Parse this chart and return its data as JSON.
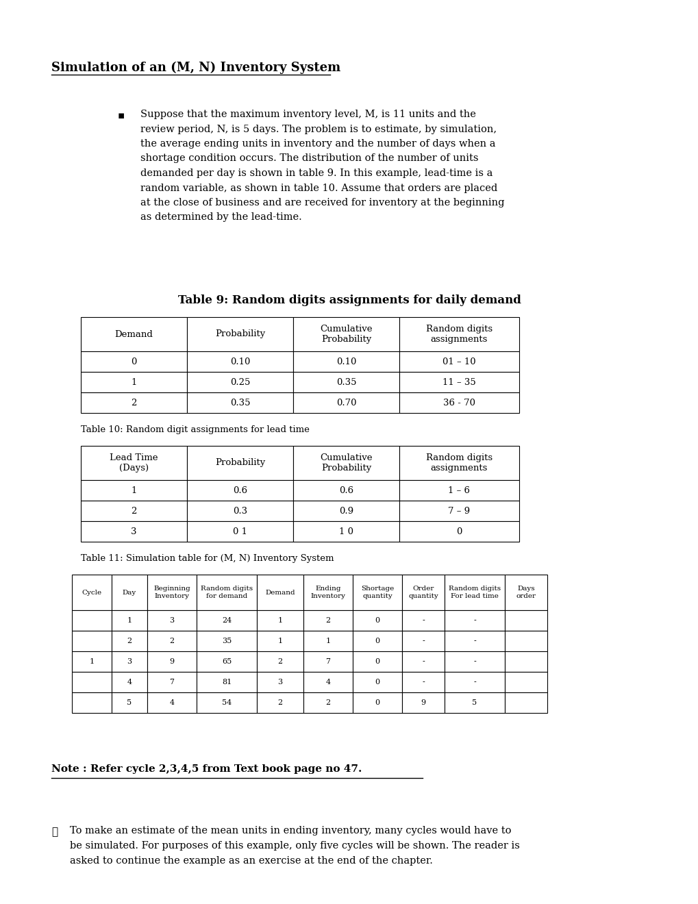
{
  "title": "Simulation of an (M, N) Inventory System",
  "table9_title": "Table 9: Random digits assignments for daily demand",
  "table9_headers": [
    "Demand",
    "Probability",
    "Cumulative\nProbability",
    "Random digits\nassignments"
  ],
  "table9_data": [
    [
      "0",
      "0.10",
      "0.10",
      "01 – 10"
    ],
    [
      "1",
      "0.25",
      "0.35",
      "11 – 35"
    ],
    [
      "2",
      "0.35",
      "0.70",
      "36 - 70"
    ]
  ],
  "table10_title": "Table 10: Random digit assignments for lead time",
  "table10_headers": [
    "Lead Time\n(Days)",
    "Probability",
    "Cumulative\nProbability",
    "Random digits\nassignments"
  ],
  "table10_data": [
    [
      "1",
      "0.6",
      "0.6",
      "1 – 6"
    ],
    [
      "2",
      "0.3",
      "0.9",
      "7 – 9"
    ],
    [
      "3",
      "0 1",
      "1 0",
      "0"
    ]
  ],
  "table11_title": "Table 11: Simulation table for (M, N) Inventory System",
  "table11_headers": [
    "Cycle",
    "Day",
    "Beginning\nInventory",
    "Random digits\nfor demand",
    "Demand",
    "Ending\nInventory",
    "Shortage\nquantity",
    "Order\nquantity",
    "Random digits\nFor lead time",
    "Days\norder"
  ],
  "table11_data": [
    [
      "",
      "1",
      "3",
      "24",
      "1",
      "2",
      "0",
      "-",
      "-",
      ""
    ],
    [
      "",
      "2",
      "2",
      "35",
      "1",
      "1",
      "0",
      "-",
      "-",
      ""
    ],
    [
      "1",
      "3",
      "9",
      "65",
      "2",
      "7",
      "0",
      "-",
      "-",
      ""
    ],
    [
      "",
      "4",
      "7",
      "81",
      "3",
      "4",
      "0",
      "-",
      "-",
      ""
    ],
    [
      "",
      "5",
      "4",
      "54",
      "2",
      "2",
      "0",
      "9",
      "5",
      ""
    ]
  ],
  "note_text": "Note : Refer cycle 2,3,4,5 from Text book page no 47.",
  "conc_lines": [
    "To make an estimate of the mean units in ending inventory, many cycles would have to",
    "be simulated. For purposes of this example, only five cycles will be shown. The reader is",
    "asked to continue the example as an exercise at the end of the chapter."
  ],
  "bullet_lines": [
    "Suppose that the maximum inventory level, M, is 11 units and the",
    "review period, N, is 5 days. The problem is to estimate, by simulation,",
    "the average ending units in inventory and the number of days when a",
    "shortage condition occurs. The distribution of the number of units",
    "demanded per day is shown in table 9. In this example, lead-time is a",
    "random variable, as shown in table 10. Assume that orders are placed",
    "at the close of business and are received for inventory at the beginning",
    "as determined by the lead-time."
  ],
  "bg_color": "#ffffff",
  "text_color": "#000000"
}
